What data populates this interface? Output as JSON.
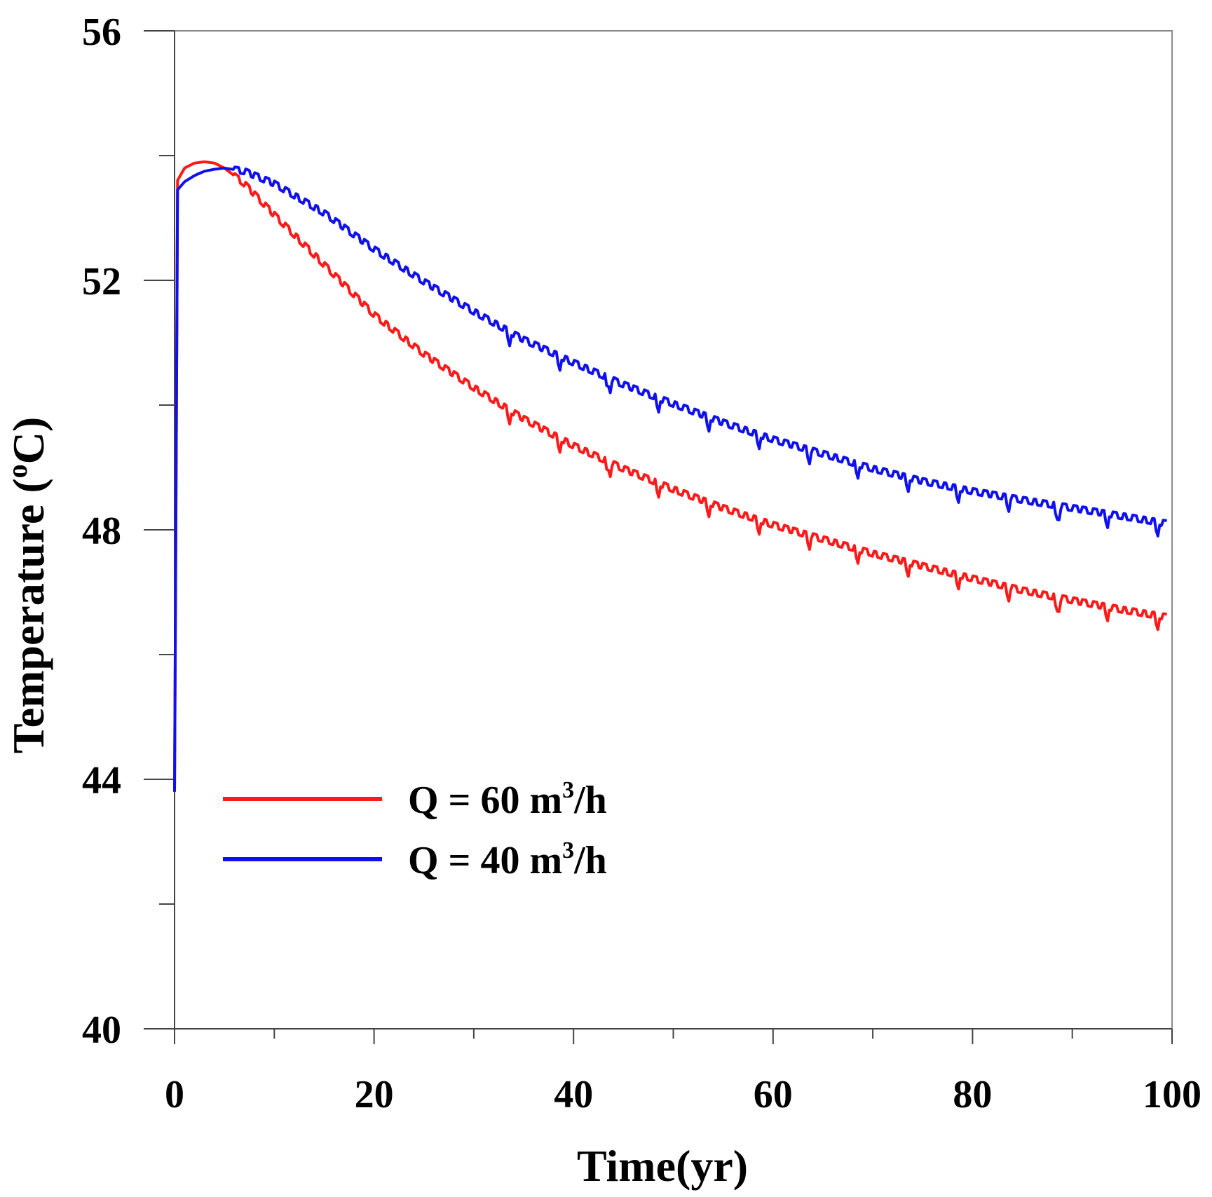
{
  "chart_data": {
    "type": "line",
    "title": "",
    "xlabel": "Time(yr)",
    "ylabel": "Temperature (°C)",
    "ylabel_main": "Temperature (",
    "ylabel_degree": "o",
    "ylabel_unit": "C)",
    "xlim": [
      0,
      100
    ],
    "ylim": [
      40,
      56
    ],
    "x_ticks": [
      0,
      20,
      40,
      60,
      80,
      100
    ],
    "x_minor_ticks": [
      10,
      30,
      50,
      70,
      90
    ],
    "y_ticks": [
      40,
      44,
      48,
      52,
      56
    ],
    "y_minor_ticks": [
      42,
      46,
      50,
      54
    ],
    "x_tick_labels": [
      "0",
      "20",
      "40",
      "60",
      "80",
      "100"
    ],
    "y_tick_labels": [
      "40",
      "44",
      "48",
      "52",
      "56"
    ],
    "legend_position": "lower-left",
    "series": [
      {
        "name": "Q = 60 m³/h",
        "legend_prefix": "Q = 60 m",
        "legend_sup": "3",
        "legend_suffix": "/h",
        "color": "#ff1a1a",
        "x": [
          0,
          0.3,
          1,
          2,
          3,
          4,
          5,
          7,
          10,
          15,
          20,
          25,
          30,
          35,
          40,
          45,
          50,
          55,
          60,
          65,
          70,
          75,
          80,
          85,
          90,
          95,
          99.5
        ],
        "values": [
          43.8,
          53.6,
          53.8,
          53.88,
          53.9,
          53.88,
          53.8,
          53.55,
          53.05,
          52.25,
          51.45,
          50.82,
          50.28,
          49.78,
          49.35,
          48.98,
          48.65,
          48.35,
          48.08,
          47.85,
          47.62,
          47.42,
          47.22,
          47.03,
          46.87,
          46.72,
          46.6
        ]
      },
      {
        "name": "Q = 40 m³/h",
        "legend_prefix": "Q = 40 m",
        "legend_sup": "3",
        "legend_suffix": "/h",
        "color": "#1010ee",
        "x": [
          0,
          0.3,
          1,
          2,
          3,
          4,
          5,
          7,
          10,
          15,
          20,
          25,
          30,
          35,
          40,
          45,
          50,
          55,
          60,
          65,
          70,
          75,
          80,
          85,
          90,
          95,
          99.5
        ],
        "values": [
          43.8,
          53.45,
          53.58,
          53.68,
          53.75,
          53.78,
          53.8,
          53.75,
          53.55,
          53.08,
          52.5,
          51.98,
          51.5,
          51.05,
          50.68,
          50.33,
          50.02,
          49.72,
          49.45,
          49.22,
          48.98,
          48.78,
          48.62,
          48.48,
          48.35,
          48.22,
          48.1
        ]
      }
    ]
  }
}
